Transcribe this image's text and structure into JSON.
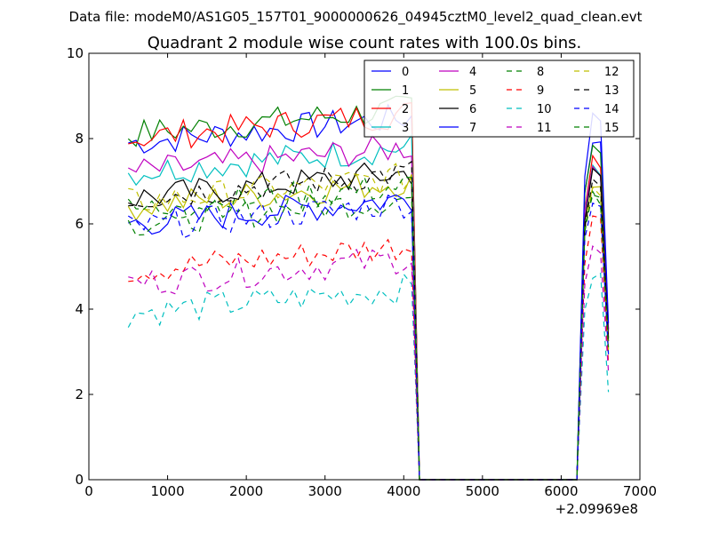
{
  "chart_data": {
    "type": "line",
    "suptitle": "Data file: modeM0/AS1G05_157T01_9000000626_04945cztM0_level2_quad_clean.evt",
    "title": "Quadrant 2 module wise count rates with 100.0s bins.",
    "xlabel": "",
    "ylabel": "",
    "x_offset_label": "+2.09969e8",
    "xlim": [
      0,
      7000
    ],
    "ylim": [
      0,
      10
    ],
    "xticks": [
      "0",
      "1000",
      "2000",
      "3000",
      "4000",
      "5000",
      "6000",
      "7000"
    ],
    "yticks": [
      "0",
      "2",
      "4",
      "6",
      "8",
      "10"
    ],
    "legend_position": "top-right",
    "segments": [
      {
        "x_start": 500,
        "x_end": 4100,
        "step": 100
      },
      {
        "x_start": 4200,
        "x_end": 6300,
        "step": 100,
        "note": "gap"
      },
      {
        "x_start": 6300,
        "x_end": 6600,
        "step": 100
      }
    ],
    "series": [
      {
        "name": "0",
        "color": "#0000ff",
        "dash": "solid",
        "level": 7.9,
        "burst": 8.0
      },
      {
        "name": "1",
        "color": "#008000",
        "dash": "solid",
        "level": 8.1,
        "burst": 7.8
      },
      {
        "name": "2",
        "color": "#ff0000",
        "dash": "solid",
        "level": 8.0,
        "burst": 7.6
      },
      {
        "name": "3",
        "color": "#00bfbf",
        "dash": "solid",
        "level": 7.2,
        "burst": 7.4
      },
      {
        "name": "4",
        "color": "#bf00bf",
        "dash": "solid",
        "level": 7.2,
        "burst": 7.4
      },
      {
        "name": "5",
        "color": "#bfbf00",
        "dash": "solid",
        "level": 6.4,
        "burst": 7.0
      },
      {
        "name": "6",
        "color": "#000000",
        "dash": "solid",
        "level": 6.6,
        "burst": 7.2
      },
      {
        "name": "7",
        "color": "#0000ff",
        "dash": "solid",
        "level": 6.0,
        "burst": 8.6
      },
      {
        "name": "8",
        "color": "#008000",
        "dash": "dashed",
        "level": 6.0,
        "burst": 6.8
      },
      {
        "name": "9",
        "color": "#ff0000",
        "dash": "dashed",
        "level": 4.9,
        "burst": 6.2
      },
      {
        "name": "10",
        "color": "#00bfbf",
        "dash": "dashed",
        "level": 3.9,
        "burst": 4.8
      },
      {
        "name": "11",
        "color": "#bf00bf",
        "dash": "dashed",
        "level": 4.6,
        "burst": 5.4
      },
      {
        "name": "12",
        "color": "#bfbf00",
        "dash": "dashed",
        "level": 6.5,
        "burst": 6.9
      },
      {
        "name": "13",
        "color": "#000000",
        "dash": "dashed",
        "level": 6.6,
        "burst": 7.0
      },
      {
        "name": "14",
        "color": "#0000ff",
        "dash": "dashed",
        "level": 5.9,
        "burst": 6.6
      },
      {
        "name": "15",
        "color": "#008000",
        "dash": "dashed",
        "level": 6.3,
        "burst": 6.7
      }
    ]
  }
}
